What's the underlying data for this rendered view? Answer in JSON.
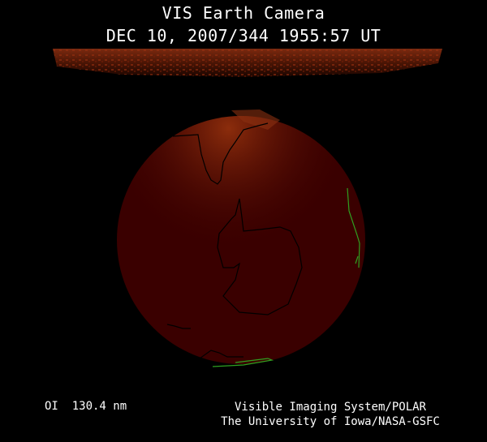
{
  "header": {
    "title": "VIS Earth Camera",
    "timestamp": "DEC 10, 2007/344 1955:57 UT"
  },
  "footer": {
    "wavelength": "OI  130.4 nm",
    "instrument": "Visible Imaging System/POLAR",
    "institution": "The University of Iowa/NASA-GSFC"
  },
  "colors": {
    "background": "#000000",
    "earth_disk": "#3a0000",
    "airglow": "#b04010",
    "coastline_night": "#000000",
    "coastline_day": "#2fa020"
  }
}
